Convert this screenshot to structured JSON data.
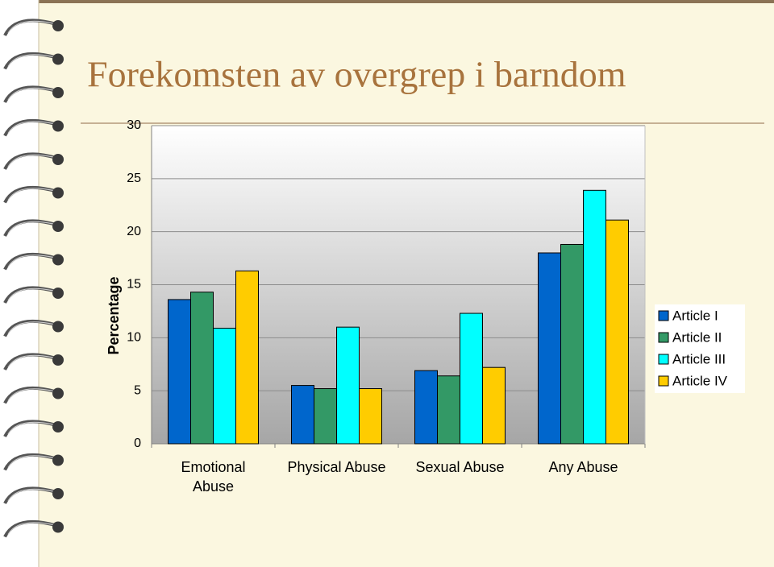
{
  "chart_data": {
    "type": "bar",
    "title": "Forekomsten av overgrep i barndom",
    "y_label": "Percentage",
    "categories": [
      "Emotional Abuse",
      "Physical Abuse",
      "Sexual Abuse",
      "Any Abuse"
    ],
    "series": [
      {
        "name": "Article I",
        "color": "#0066cc",
        "values": [
          13.6,
          5.5,
          6.9,
          18.0
        ]
      },
      {
        "name": "Article II",
        "color": "#339966",
        "values": [
          14.3,
          5.2,
          6.4,
          18.8
        ]
      },
      {
        "name": "Article III",
        "color": "#00ffff",
        "values": [
          10.9,
          11.0,
          12.3,
          23.9
        ]
      },
      {
        "name": "Article IV",
        "color": "#ffcc00",
        "values": [
          16.3,
          5.2,
          7.2,
          21.1
        ]
      }
    ],
    "ylim": [
      0,
      30
    ],
    "yticks": [
      0,
      5,
      10,
      15,
      20,
      25,
      30
    ],
    "grid": true,
    "legend": "right"
  }
}
